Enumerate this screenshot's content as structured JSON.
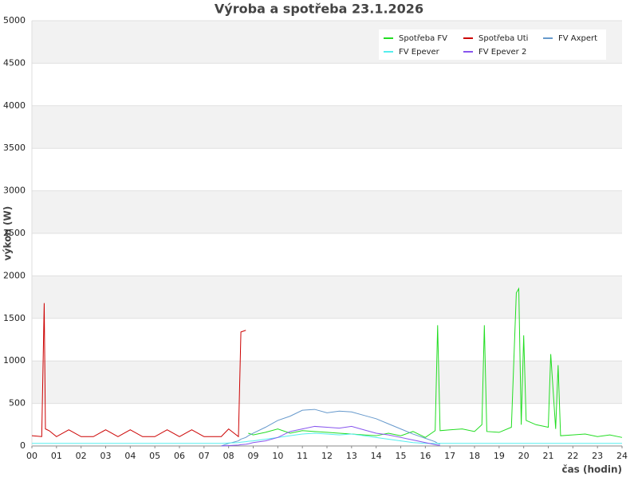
{
  "chart_data": {
    "type": "line",
    "title": "Výroba a spotřeba 23.1.2026",
    "x_label": "čas (hodin)",
    "y_label": "výkon (W)",
    "x": [
      0,
      0.4,
      0.5,
      0.55,
      0.7,
      1,
      1.5,
      2,
      2.5,
      3,
      3.5,
      4,
      4.5,
      5,
      5.5,
      6,
      6.5,
      7,
      7.5,
      7.7,
      8,
      8.4,
      8.5,
      8.7,
      8.8,
      9,
      9.5,
      10,
      10.5,
      11,
      11.5,
      12,
      12.5,
      13,
      13.5,
      14,
      14.5,
      15,
      15.5,
      16,
      16.4,
      16.5,
      16.6,
      17,
      17.5,
      18,
      18.3,
      18.4,
      18.5,
      19,
      19.5,
      19.7,
      19.8,
      19.9,
      20,
      20.1,
      20.5,
      21,
      21.1,
      21.3,
      21.4,
      21.5,
      22,
      22.5,
      23,
      23.5,
      24
    ],
    "series": [
      {
        "name": "Spotřeba FV",
        "color": "#22dd22",
        "values": [
          null,
          null,
          null,
          null,
          null,
          null,
          null,
          null,
          null,
          null,
          null,
          null,
          null,
          null,
          null,
          null,
          null,
          null,
          null,
          null,
          null,
          null,
          null,
          null,
          150,
          130,
          160,
          200,
          150,
          180,
          170,
          160,
          150,
          140,
          130,
          120,
          150,
          120,
          170,
          100,
          180,
          1420,
          180,
          190,
          200,
          170,
          250,
          1420,
          170,
          160,
          220,
          1800,
          1850,
          250,
          1300,
          300,
          250,
          220,
          1080,
          200,
          950,
          120,
          130,
          140,
          110,
          130,
          100
        ]
      },
      {
        "name": "Spotřeba Uti",
        "color": "#cc0000",
        "values": [
          120,
          110,
          1680,
          200,
          180,
          110,
          190,
          110,
          110,
          190,
          110,
          190,
          110,
          110,
          190,
          110,
          190,
          110,
          110,
          110,
          200,
          110,
          1340,
          1360,
          null,
          null,
          null,
          null,
          null,
          null,
          null,
          null,
          null,
          null,
          null,
          null,
          null,
          null,
          null,
          null,
          null,
          null,
          null,
          null,
          null,
          null,
          null,
          null,
          null,
          null,
          null,
          null,
          null,
          null,
          null,
          null,
          null,
          null,
          null,
          null,
          null,
          null,
          null,
          null,
          null,
          null,
          null
        ]
      },
      {
        "name": "FV Axpert",
        "color": "#6699cc",
        "values": [
          null,
          null,
          null,
          null,
          null,
          null,
          null,
          null,
          null,
          null,
          null,
          null,
          null,
          null,
          null,
          null,
          null,
          null,
          null,
          0,
          30,
          60,
          80,
          100,
          120,
          150,
          220,
          300,
          350,
          420,
          430,
          390,
          410,
          400,
          360,
          320,
          260,
          200,
          140,
          90,
          50,
          30,
          20,
          null,
          null,
          null,
          null,
          null,
          null,
          null,
          null,
          null,
          null,
          null,
          null,
          null,
          null,
          null,
          null,
          null,
          null,
          null,
          null,
          null,
          null,
          null,
          null
        ]
      },
      {
        "name": "FV Epever",
        "color": "#55eeee",
        "values": [
          30,
          30,
          30,
          30,
          30,
          30,
          30,
          30,
          30,
          30,
          30,
          30,
          30,
          30,
          30,
          30,
          30,
          30,
          30,
          30,
          35,
          40,
          45,
          50,
          55,
          60,
          80,
          100,
          120,
          140,
          150,
          140,
          130,
          140,
          120,
          100,
          80,
          60,
          40,
          30,
          30,
          30,
          30,
          30,
          30,
          30,
          30,
          30,
          30,
          30,
          30,
          30,
          30,
          30,
          30,
          30,
          30,
          30,
          30,
          30,
          30,
          30,
          30,
          30,
          30,
          30,
          30
        ]
      },
      {
        "name": "FV Epever 2",
        "color": "#8855ee",
        "values": [
          null,
          null,
          null,
          null,
          null,
          null,
          null,
          null,
          null,
          null,
          null,
          null,
          null,
          null,
          null,
          null,
          null,
          null,
          null,
          0,
          5,
          10,
          15,
          20,
          25,
          40,
          60,
          100,
          170,
          200,
          230,
          220,
          210,
          230,
          190,
          150,
          130,
          100,
          70,
          40,
          15,
          10,
          5,
          null,
          null,
          null,
          null,
          null,
          null,
          null,
          null,
          null,
          null,
          null,
          null,
          null,
          null,
          null,
          null,
          null,
          null,
          null,
          null,
          null,
          null,
          null,
          null
        ]
      }
    ],
    "xlim": [
      0,
      24
    ],
    "xticks": [
      {
        "value": 0,
        "label": "00"
      },
      {
        "value": 1,
        "label": "01"
      },
      {
        "value": 2,
        "label": "02"
      },
      {
        "value": 3,
        "label": "03"
      },
      {
        "value": 4,
        "label": "04"
      },
      {
        "value": 5,
        "label": "05"
      },
      {
        "value": 6,
        "label": "06"
      },
      {
        "value": 7,
        "label": "07"
      },
      {
        "value": 8,
        "label": "08"
      },
      {
        "value": 9,
        "label": "09"
      },
      {
        "value": 10,
        "label": "10"
      },
      {
        "value": 11,
        "label": "11"
      },
      {
        "value": 12,
        "label": "12"
      },
      {
        "value": 13,
        "label": "13"
      },
      {
        "value": 14,
        "label": "14"
      },
      {
        "value": 15,
        "label": "15"
      },
      {
        "value": 16,
        "label": "16"
      },
      {
        "value": 17,
        "label": "17"
      },
      {
        "value": 18,
        "label": "18"
      },
      {
        "value": 19,
        "label": "19"
      },
      {
        "value": 20,
        "label": "20"
      },
      {
        "value": 21,
        "label": "21"
      },
      {
        "value": 22,
        "label": "22"
      },
      {
        "value": 23,
        "label": "23"
      },
      {
        "value": 24,
        "label": "24"
      }
    ],
    "ylim": [
      0,
      5000
    ],
    "yticks": [
      0,
      500,
      1000,
      1500,
      2000,
      2500,
      3000,
      3500,
      4000,
      4500,
      5000
    ],
    "grid": true,
    "legend": "upper right"
  }
}
